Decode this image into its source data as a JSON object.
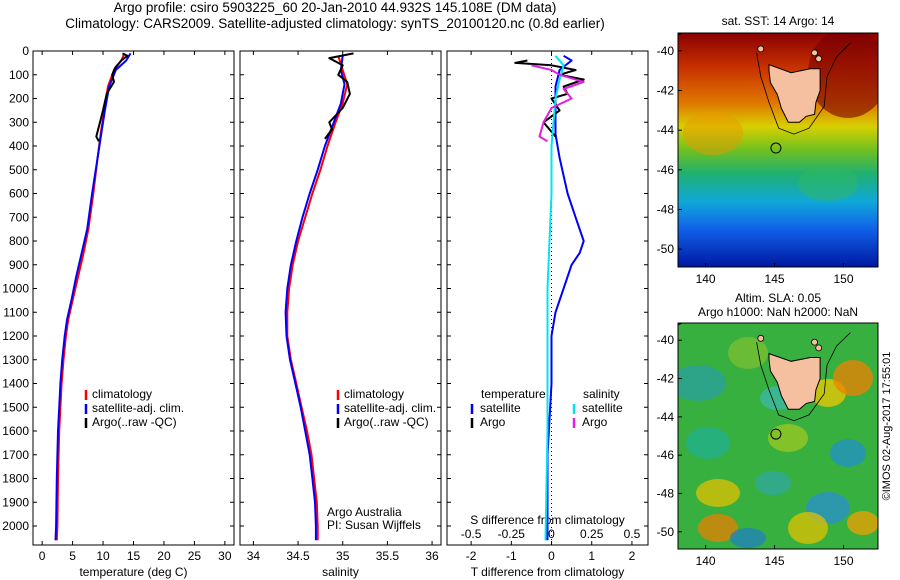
{
  "title_line1": "Argo profile: csiro 5903225_60 20-Jan-2010 44.932S 145.108E (DM data)",
  "title_line2": "Climatology: CARS2009. Satellite-adjusted climatology: synTS_20100120.nc (0.8d earlier)",
  "stamp": "©IMOS 02-Aug-2017 17:55:01",
  "colors": {
    "climatology": "#ff0000",
    "satellite": "#0000ff",
    "argo": "#000000",
    "sal_satellite": "#00e5ee",
    "sal_argo": "#e020e0"
  },
  "chart_data": [
    {
      "type": "line",
      "id": "temperature",
      "xlabel": "temperature (deg C)",
      "xlim": [
        -1.5,
        31.5
      ],
      "xticks": [
        0,
        5,
        10,
        15,
        20,
        25,
        30
      ],
      "ylim": [
        0,
        2080
      ],
      "yticks": [
        0,
        100,
        200,
        300,
        400,
        500,
        600,
        700,
        800,
        900,
        1000,
        1100,
        1200,
        1300,
        1400,
        1500,
        1600,
        1700,
        1800,
        1900,
        2000
      ],
      "legend": [
        "climatology",
        "satellite-adj. clim.",
        "Argo(..raw -QC)"
      ],
      "legend_position": "lower-middle",
      "series": [
        {
          "name": "climatology",
          "color_key": "climatology",
          "points": [
            [
              13.5,
              10
            ],
            [
              13.0,
              40
            ],
            [
              11.8,
              80
            ],
            [
              10.8,
              150
            ],
            [
              10.2,
              250
            ],
            [
              9.6,
              350
            ],
            [
              9.1,
              450
            ],
            [
              8.4,
              600
            ],
            [
              7.6,
              750
            ],
            [
              6.8,
              850
            ],
            [
              5.9,
              950
            ],
            [
              5.0,
              1050
            ],
            [
              4.3,
              1130
            ],
            [
              3.9,
              1200
            ],
            [
              3.5,
              1300
            ],
            [
              3.2,
              1400
            ],
            [
              3.0,
              1500
            ],
            [
              2.8,
              1600
            ],
            [
              2.6,
              1800
            ],
            [
              2.5,
              2000
            ],
            [
              2.4,
              2060
            ]
          ]
        },
        {
          "name": "satellite-adj. clim.",
          "color_key": "satellite",
          "points": [
            [
              14.5,
              10
            ],
            [
              13.8,
              40
            ],
            [
              12.1,
              80
            ],
            [
              11.0,
              150
            ],
            [
              10.3,
              250
            ],
            [
              9.7,
              350
            ],
            [
              9.1,
              450
            ],
            [
              8.2,
              600
            ],
            [
              7.4,
              750
            ],
            [
              6.5,
              850
            ],
            [
              5.6,
              950
            ],
            [
              4.8,
              1050
            ],
            [
              4.1,
              1130
            ],
            [
              3.7,
              1200
            ],
            [
              3.3,
              1300
            ],
            [
              3.0,
              1400
            ],
            [
              2.8,
              1500
            ],
            [
              2.6,
              1600
            ],
            [
              2.4,
              1800
            ],
            [
              2.3,
              2000
            ],
            [
              2.2,
              2060
            ]
          ]
        },
        {
          "name": "Argo(..raw -QC)",
          "color_key": "argo",
          "points": [
            [
              13.2,
              10
            ],
            [
              14.0,
              20
            ],
            [
              13.0,
              40
            ],
            [
              12.0,
              70
            ],
            [
              11.5,
              100
            ],
            [
              11.8,
              130
            ],
            [
              10.6,
              180
            ],
            [
              10.0,
              250
            ],
            [
              9.5,
              300
            ],
            [
              8.9,
              360
            ],
            [
              9.3,
              380
            ]
          ]
        }
      ]
    },
    {
      "type": "line",
      "id": "salinity",
      "xlabel": "salinity",
      "xlim": [
        33.85,
        36.1
      ],
      "xticks": [
        34,
        34.5,
        35,
        35.5,
        36
      ],
      "ylim": [
        0,
        2080
      ],
      "legend": [
        "climatology",
        "satellite-adj. clim.",
        "Argo(..raw -QC)"
      ],
      "legend_position": "lower-middle",
      "annotation": [
        "Argo Australia",
        "PI: Susan Wijffels"
      ],
      "series": [
        {
          "name": "climatology",
          "color_key": "climatology",
          "points": [
            [
              34.95,
              20
            ],
            [
              35.0,
              80
            ],
            [
              35.05,
              140
            ],
            [
              35.0,
              220
            ],
            [
              34.92,
              300
            ],
            [
              34.83,
              400
            ],
            [
              34.75,
              500
            ],
            [
              34.66,
              600
            ],
            [
              34.58,
              700
            ],
            [
              34.5,
              800
            ],
            [
              34.44,
              900
            ],
            [
              34.4,
              1000
            ],
            [
              34.38,
              1100
            ],
            [
              34.38,
              1200
            ],
            [
              34.42,
              1300
            ],
            [
              34.48,
              1400
            ],
            [
              34.54,
              1500
            ],
            [
              34.6,
              1600
            ],
            [
              34.65,
              1700
            ],
            [
              34.68,
              1800
            ],
            [
              34.71,
              1900
            ],
            [
              34.72,
              2000
            ],
            [
              34.72,
              2060
            ]
          ]
        },
        {
          "name": "satellite-adj. clim.",
          "color_key": "satellite",
          "points": [
            [
              35.0,
              20
            ],
            [
              34.98,
              80
            ],
            [
              35.02,
              140
            ],
            [
              34.98,
              220
            ],
            [
              34.9,
              300
            ],
            [
              34.8,
              400
            ],
            [
              34.72,
              500
            ],
            [
              34.63,
              600
            ],
            [
              34.55,
              700
            ],
            [
              34.48,
              800
            ],
            [
              34.42,
              900
            ],
            [
              34.38,
              1000
            ],
            [
              34.36,
              1100
            ],
            [
              34.37,
              1200
            ],
            [
              34.41,
              1300
            ],
            [
              34.47,
              1400
            ],
            [
              34.53,
              1500
            ],
            [
              34.58,
              1600
            ],
            [
              34.63,
              1700
            ],
            [
              34.66,
              1800
            ],
            [
              34.69,
              1900
            ],
            [
              34.7,
              2000
            ],
            [
              34.7,
              2060
            ]
          ]
        },
        {
          "name": "Argo(..raw -QC)",
          "color_key": "argo",
          "points": [
            [
              35.12,
              10
            ],
            [
              34.85,
              30
            ],
            [
              35.0,
              60
            ],
            [
              34.95,
              100
            ],
            [
              35.05,
              130
            ],
            [
              35.08,
              180
            ],
            [
              35.0,
              240
            ],
            [
              34.85,
              300
            ],
            [
              34.88,
              330
            ],
            [
              34.8,
              370
            ]
          ]
        }
      ]
    },
    {
      "type": "line",
      "id": "difference",
      "xlabel": "T difference from climatology",
      "xlim": [
        -2.6,
        2.4
      ],
      "xticks": [
        -2,
        -1,
        0,
        1,
        2
      ],
      "top_label": "S difference from climatology",
      "top_xticks": [
        "-0.5",
        "-0.25",
        "0",
        "0.25",
        "0.5"
      ],
      "top_xtick_values": [
        -2,
        -1,
        0,
        1,
        2
      ],
      "ylim": [
        0,
        2080
      ],
      "legend_titles": [
        "temperature",
        "salinity"
      ],
      "legend_left": [
        "satellite",
        "Argo"
      ],
      "legend_right": [
        "satellite",
        "Argo"
      ],
      "legend_position": "lower-middle",
      "series": [
        {
          "name": "temperature satellite",
          "color_key": "satellite",
          "points": [
            [
              0.3,
              20
            ],
            [
              0.5,
              40
            ],
            [
              0.2,
              80
            ],
            [
              0.1,
              150
            ],
            [
              0.1,
              250
            ],
            [
              0.1,
              350
            ],
            [
              0.2,
              450
            ],
            [
              0.4,
              600
            ],
            [
              0.6,
              700
            ],
            [
              0.8,
              800
            ],
            [
              0.7,
              850
            ],
            [
              0.5,
              900
            ],
            [
              0.3,
              1000
            ],
            [
              0.1,
              1100
            ],
            [
              0.0,
              1200
            ],
            [
              0.0,
              1400
            ],
            [
              -0.1,
              1700
            ],
            [
              -0.1,
              2060
            ]
          ]
        },
        {
          "name": "temperature Argo",
          "color_key": "argo",
          "points": [
            [
              -0.6,
              40
            ],
            [
              -0.9,
              50
            ],
            [
              0.0,
              60
            ],
            [
              0.6,
              80
            ],
            [
              0.2,
              100
            ],
            [
              0.8,
              120
            ],
            [
              0.3,
              150
            ],
            [
              0.4,
              180
            ],
            [
              0.0,
              200
            ],
            [
              0.2,
              250
            ],
            [
              -0.2,
              300
            ],
            [
              0.1,
              360
            ]
          ]
        },
        {
          "name": "salinity satellite",
          "color_key": "sal_satellite",
          "points": [
            [
              0.1,
              20
            ],
            [
              0.3,
              60
            ],
            [
              0.2,
              120
            ],
            [
              0.1,
              200
            ],
            [
              0.05,
              300
            ],
            [
              0.0,
              400
            ],
            [
              0.0,
              600
            ],
            [
              -0.05,
              800
            ],
            [
              -0.1,
              1000
            ],
            [
              -0.1,
              1300
            ],
            [
              -0.1,
              1600
            ],
            [
              -0.15,
              2060
            ]
          ]
        },
        {
          "name": "salinity Argo",
          "color_key": "sal_argo",
          "points": [
            [
              -0.5,
              60
            ],
            [
              0.0,
              80
            ],
            [
              0.2,
              100
            ],
            [
              0.8,
              130
            ],
            [
              0.3,
              160
            ],
            [
              0.5,
              200
            ],
            [
              0.0,
              240
            ],
            [
              -0.2,
              300
            ],
            [
              -0.3,
              360
            ],
            [
              -0.1,
              380
            ]
          ]
        }
      ]
    }
  ],
  "maps": [
    {
      "id": "sst-map",
      "title": "sat. SST: 14 Argo: 14",
      "extra_title": "",
      "xticks": [
        140,
        145,
        150
      ],
      "yticks": [
        -40,
        -42,
        -44,
        -46,
        -48,
        -50
      ],
      "lon": [
        138,
        152.5
      ],
      "lat": [
        -50.9,
        -39.1
      ],
      "argo_marker": [
        145.1,
        -44.9
      ]
    },
    {
      "id": "sla-map",
      "title": "Altim. SLA: 0.05",
      "extra_title": "Argo h1000: NaN h2000: NaN",
      "xticks": [
        140,
        145,
        150
      ],
      "yticks": [
        -40,
        -42,
        -44,
        -46,
        -48,
        -50
      ],
      "lon": [
        138,
        152.5
      ],
      "lat": [
        -50.9,
        -39.1
      ],
      "argo_marker": [
        145.1,
        -44.9
      ]
    }
  ]
}
